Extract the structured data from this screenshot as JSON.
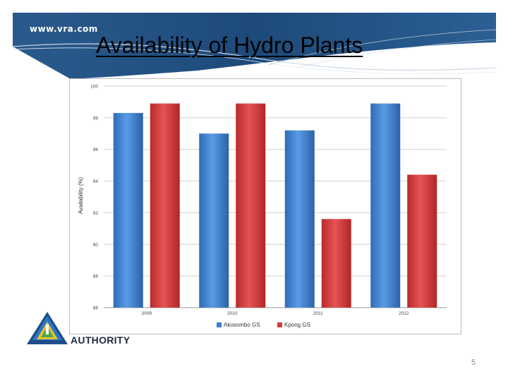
{
  "header": {
    "site": "www.vra.com",
    "title": "Availability of Hydro Plants"
  },
  "logo": {
    "text": "AUTHORITY"
  },
  "footer": {
    "page_number": "5"
  },
  "colors": {
    "banner": "#1f4a78",
    "akosombo": "#3b7fd0",
    "kpong": "#d43838"
  },
  "chart_data": {
    "type": "bar",
    "categories": [
      "2009",
      "2010",
      "2011",
      "2012"
    ],
    "series": [
      {
        "name": "Akosombo GS",
        "values": [
          98.3,
          97.0,
          97.2,
          98.9
        ],
        "color": "#3b7fd0"
      },
      {
        "name": "Kpong GS",
        "values": [
          98.9,
          98.9,
          91.6,
          94.4
        ],
        "color": "#d43838"
      }
    ],
    "ylabel": "Availability (%)",
    "ylim": [
      86,
      100
    ],
    "yticks": [
      "86",
      "88",
      "90",
      "92",
      "94",
      "96",
      "98",
      "100"
    ],
    "grid": true,
    "legend": "bottom"
  }
}
